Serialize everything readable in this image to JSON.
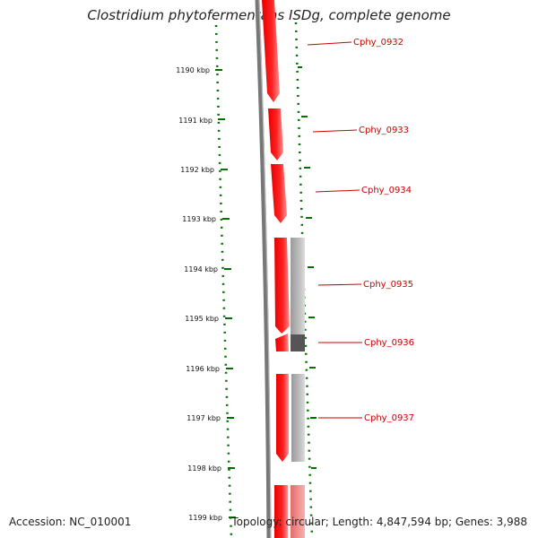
{
  "title": "Clostridium phytofermentans ISDg, complete genome",
  "accession": "Accession: NC_010001",
  "summary": "Topology: circular; Length: 4,847,594 bp; Genes: 3,988",
  "ticks": [
    "1190 kbp",
    "1191 kbp",
    "1192 kbp",
    "1193 kbp",
    "1194 kbp",
    "1195 kbp",
    "1196 kbp",
    "1197 kbp",
    "1198 kbp",
    "1199 kbp"
  ],
  "genes": [
    "Cphy_0932",
    "Cphy_0933",
    "Cphy_0934",
    "Cphy_0935",
    "Cphy_0936",
    "Cphy_0937"
  ],
  "colors": {
    "gene": "#ff0000",
    "label": "#cc0000",
    "tick": "#007000",
    "backbone": "#777777",
    "track": "#b0b0b0",
    "track_dark": "#555555"
  }
}
